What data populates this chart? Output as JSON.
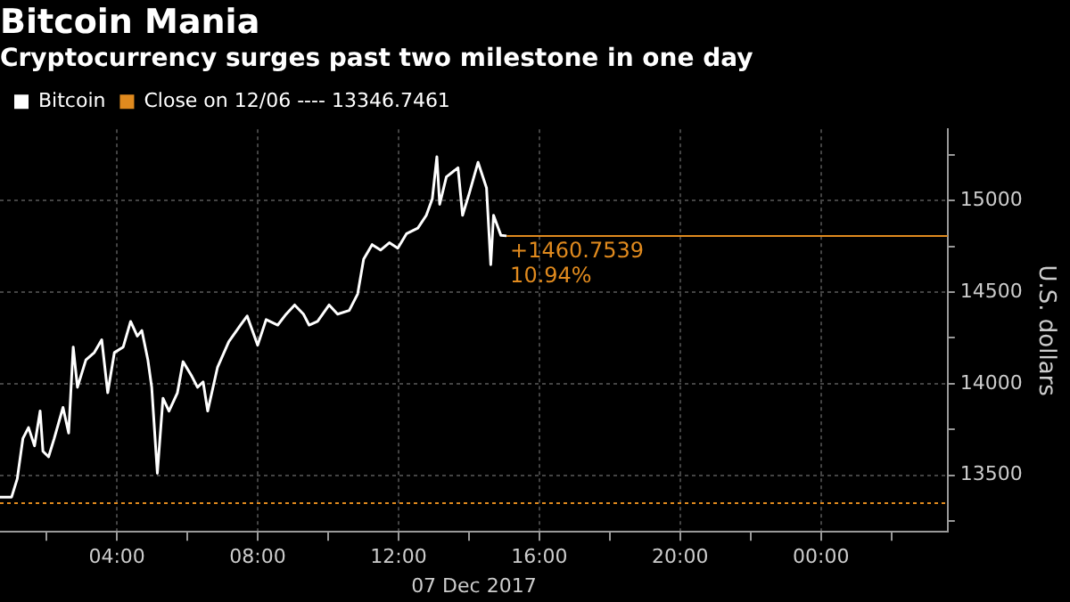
{
  "chart_data": {
    "type": "line",
    "title": "Bitcoin Mania",
    "subtitle": "Cryptocurrency surges past two milestone in one day",
    "xlabel": "07 Dec 2017",
    "ylabel": "U.S. dollars",
    "x": [
      0.68,
      1.01,
      1.17,
      1.33,
      1.49,
      1.66,
      1.82,
      1.9,
      2.06,
      2.22,
      2.47,
      2.63,
      2.76,
      2.88,
      3.12,
      3.36,
      3.57,
      3.74,
      3.93,
      4.18,
      4.39,
      4.58,
      4.71,
      4.88,
      4.99,
      5.15,
      5.31,
      5.48,
      5.72,
      5.88,
      6.13,
      6.29,
      6.45,
      6.58,
      6.86,
      7.18,
      7.51,
      7.7,
      8.0,
      8.24,
      8.57,
      8.81,
      9.05,
      9.3,
      9.46,
      9.7,
      10.03,
      10.27,
      10.6,
      10.84,
      11.01,
      11.25,
      11.49,
      11.74,
      11.98,
      12.23,
      12.55,
      12.79,
      12.96,
      13.09,
      13.17,
      13.36,
      13.69,
      13.82,
      14.01,
      14.26,
      14.5,
      14.62,
      14.7,
      14.91,
      15.07
    ],
    "series": [
      {
        "name": "Bitcoin",
        "color": "#ffffff",
        "values": [
          13380,
          13380,
          13480,
          13700,
          13760,
          13660,
          13850,
          13630,
          13600,
          13700,
          13870,
          13730,
          14200,
          13980,
          14130,
          14170,
          14240,
          13950,
          14170,
          14200,
          14340,
          14260,
          14290,
          14130,
          13980,
          13510,
          13920,
          13850,
          13950,
          14120,
          14040,
          13980,
          14010,
          13850,
          14090,
          14230,
          14320,
          14370,
          14210,
          14350,
          14320,
          14380,
          14430,
          14380,
          14320,
          14340,
          14430,
          14380,
          14400,
          14490,
          14680,
          14760,
          14730,
          14770,
          14740,
          14820,
          14850,
          14920,
          15010,
          15240,
          14980,
          15130,
          15180,
          14920,
          15040,
          15210,
          15070,
          14650,
          14920,
          14810,
          14807.5
        ]
      }
    ],
    "xlim": [
      0.68,
      27.6
    ],
    "xticks": [
      {
        "value": 2,
        "label": null
      },
      {
        "value": 4,
        "label": "04:00"
      },
      {
        "value": 6,
        "label": null
      },
      {
        "value": 8,
        "label": "08:00"
      },
      {
        "value": 10,
        "label": null
      },
      {
        "value": 12,
        "label": "12:00"
      },
      {
        "value": 14,
        "label": null
      },
      {
        "value": 16,
        "label": "16:00"
      },
      {
        "value": 18,
        "label": null
      },
      {
        "value": 20,
        "label": "20:00"
      },
      {
        "value": 22,
        "label": null
      },
      {
        "value": 24,
        "label": "00:00"
      },
      {
        "value": 26,
        "label": null
      }
    ],
    "ylim": [
      13190,
      15390
    ],
    "yticks": [
      {
        "value": 13250,
        "label": null
      },
      13500,
      {
        "value": 13750,
        "label": null
      },
      14000,
      {
        "value": 14250,
        "label": null
      },
      14500,
      {
        "value": 14750,
        "label": null
      },
      15000,
      {
        "value": 15250,
        "label": null
      }
    ],
    "ref_lines": [
      {
        "axis": "y",
        "value": 13346.7461,
        "label": "Close on 12/06 ---- 13346.7461",
        "color": "#e08a1e",
        "line_style": "dotted"
      },
      {
        "axis": "y",
        "value": 14807.5,
        "color": "#e08a1e",
        "line_style": "solid"
      }
    ],
    "annotations": [
      {
        "text": "+1460.7539",
        "x": 15.07,
        "y": 14807.5
      },
      {
        "text": "10.94%",
        "x": 15.07,
        "y": 14807.5
      }
    ],
    "grid": true,
    "legend": "top left",
    "marker": "none",
    "line_style": "solid"
  }
}
